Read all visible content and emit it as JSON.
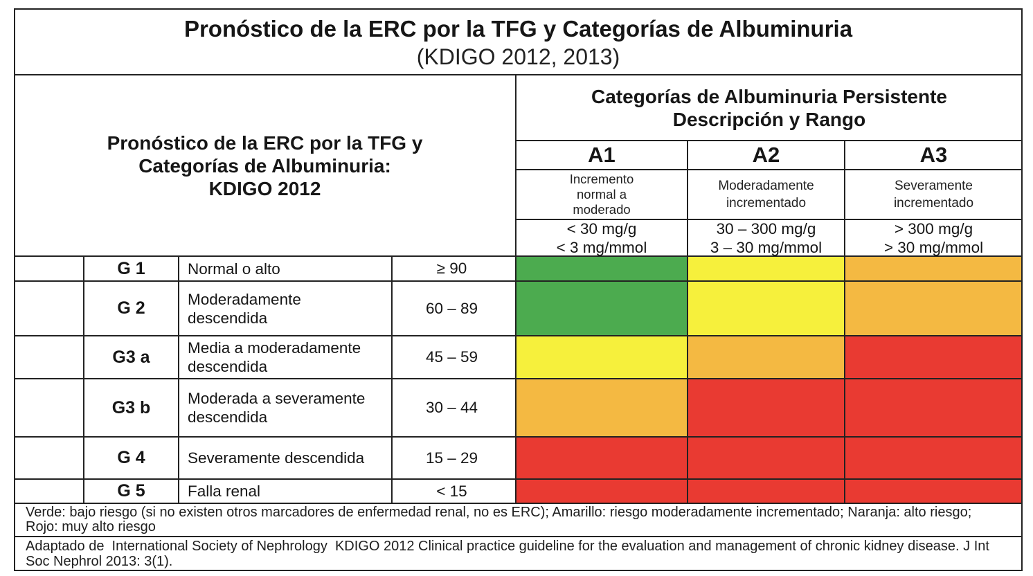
{
  "title": {
    "main": "Pronóstico de la ERC por la TFG y Categorías de Albuminuria",
    "subtitle": "(KDIGO 2012, 2013)"
  },
  "left_header": [
    "Pronóstico de la ERC por la TFG y",
    "Categorías de Albuminuria:",
    "KDIGO 2012"
  ],
  "albuminuria_header": [
    "Categorías de Albuminuria Persistente",
    "Descripción y Rango"
  ],
  "albuminuria_categories": [
    {
      "code": "A1",
      "description": [
        "Incremento",
        "normal a",
        "moderado"
      ],
      "range": [
        "< 30 mg/g",
        "< 3 mg/mmol"
      ]
    },
    {
      "code": "A2",
      "description": [
        "Moderadamente",
        "incrementado"
      ],
      "range": [
        "30 – 300 mg/g",
        "3 – 30 mg/mmol"
      ]
    },
    {
      "code": "A3",
      "description": [
        "Severamente",
        "incrementado"
      ],
      "range": [
        "> 300 mg/g",
        "> 30 mg/mmol"
      ]
    }
  ],
  "gfr_categories": [
    {
      "grade": "G 1",
      "description": [
        "Normal o alto"
      ],
      "range": "≥ 90",
      "risk_colors": [
        "#4cab4f",
        "#f6f03c",
        "#f4b942"
      ]
    },
    {
      "grade": "G 2",
      "description": [
        "Moderadamente",
        "descendida"
      ],
      "range": "60 – 89",
      "risk_colors": [
        "#4cab4f",
        "#f6f03c",
        "#f4b942"
      ]
    },
    {
      "grade": "G3 a",
      "description": [
        "Media a moderadamente",
        "descendida"
      ],
      "range": "45 – 59",
      "risk_colors": [
        "#f6f03c",
        "#f4b942",
        "#e93a32"
      ]
    },
    {
      "grade": "G3 b",
      "description": [
        "Moderada a severamente",
        "descendida"
      ],
      "range": "30 – 44",
      "risk_colors": [
        "#f4b942",
        "#e93a32",
        "#e93a32"
      ]
    },
    {
      "grade": "G 4",
      "description": [
        "Severamente descendida"
      ],
      "range": "15 – 29",
      "risk_colors": [
        "#e93a32",
        "#e93a32",
        "#e93a32"
      ]
    },
    {
      "grade": "G 5",
      "description": [
        "Falla renal"
      ],
      "range": "< 15",
      "risk_colors": [
        "#e93a32",
        "#e93a32",
        "#e93a32"
      ]
    }
  ],
  "footer": {
    "legend": [
      "Verde: bajo riesgo (si no existen otros marcadores de enfermedad renal, no es ERC); Amarillo: riesgo moderadamente incrementado; Naranja: alto riesgo;",
      "Rojo: muy alto riesgo"
    ],
    "source": [
      "Adaptado de  International Society of Nephrology  KDIGO 2012 Clinical practice guideline for the evaluation and management of chronic kidney disease. J Int",
      "Soc Nephrol 2013: 3(1)."
    ]
  }
}
